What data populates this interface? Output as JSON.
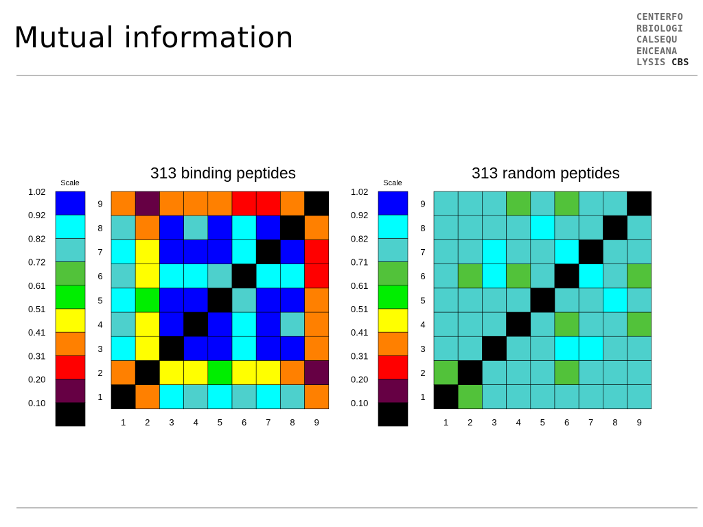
{
  "slide": {
    "title": "Mutual information"
  },
  "logo": {
    "lines": [
      "CENTERFO",
      "RBIOLOGI",
      "CALSEQU",
      "ENCEANA",
      "LYSIS"
    ],
    "last_word": "CBS"
  },
  "colors": {
    "background": "#ffffff",
    "grid_line": "#000000",
    "rule": "#bdbdbd",
    "scale": [
      "#000000",
      "#660044",
      "#ff0000",
      "#ff8000",
      "#ffff00",
      "#00ee00",
      "#52c23a",
      "#4dd0cc",
      "#00ffff",
      "#0000ff"
    ]
  },
  "chart_data": [
    {
      "type": "heatmap",
      "title": "313 binding peptides",
      "x": [
        "1",
        "2",
        "3",
        "4",
        "5",
        "6",
        "7",
        "8",
        "9"
      ],
      "y": [
        "1",
        "2",
        "3",
        "4",
        "5",
        "6",
        "7",
        "8",
        "9"
      ],
      "scale_label": "Scale",
      "scale_ticks": [
        "1.02",
        "0.92",
        "0.82",
        "0.72",
        "0.61",
        "0.51",
        "0.41",
        "0.31",
        "0.20",
        "0.10"
      ],
      "levels": [
        [
          0,
          3,
          8,
          7,
          8,
          7,
          8,
          7,
          3
        ],
        [
          3,
          0,
          4,
          4,
          5,
          4,
          4,
          3,
          1
        ],
        [
          8,
          4,
          0,
          9,
          9,
          8,
          9,
          9,
          3
        ],
        [
          7,
          4,
          9,
          0,
          9,
          8,
          9,
          7,
          3
        ],
        [
          8,
          5,
          9,
          9,
          0,
          7,
          9,
          9,
          3
        ],
        [
          7,
          4,
          8,
          8,
          7,
          0,
          8,
          8,
          2
        ],
        [
          8,
          4,
          9,
          9,
          9,
          8,
          0,
          9,
          2
        ],
        [
          7,
          3,
          9,
          7,
          9,
          8,
          9,
          0,
          3
        ],
        [
          3,
          1,
          3,
          3,
          3,
          2,
          2,
          3,
          0
        ]
      ]
    },
    {
      "type": "heatmap",
      "title": "313 random peptides",
      "x": [
        "1",
        "2",
        "3",
        "4",
        "5",
        "6",
        "7",
        "8",
        "9"
      ],
      "y": [
        "1",
        "2",
        "3",
        "4",
        "5",
        "6",
        "7",
        "8",
        "9"
      ],
      "scale_label": "Scale",
      "scale_ticks": [
        "1.02",
        "0.92",
        "0.82",
        "0.71",
        "0.61",
        "0.51",
        "0.41",
        "0.31",
        "0.20",
        "0.10"
      ],
      "levels": [
        [
          0,
          6,
          7,
          7,
          7,
          7,
          7,
          7,
          7
        ],
        [
          6,
          0,
          7,
          7,
          7,
          6,
          7,
          7,
          7
        ],
        [
          7,
          7,
          0,
          7,
          7,
          8,
          8,
          7,
          7
        ],
        [
          7,
          7,
          7,
          0,
          7,
          6,
          7,
          7,
          6
        ],
        [
          7,
          7,
          7,
          7,
          0,
          7,
          7,
          8,
          7
        ],
        [
          7,
          6,
          8,
          6,
          7,
          0,
          8,
          7,
          6
        ],
        [
          7,
          7,
          8,
          7,
          7,
          8,
          0,
          7,
          7
        ],
        [
          7,
          7,
          7,
          7,
          8,
          7,
          7,
          0,
          7
        ],
        [
          7,
          7,
          7,
          6,
          7,
          6,
          7,
          7,
          0
        ]
      ]
    }
  ]
}
